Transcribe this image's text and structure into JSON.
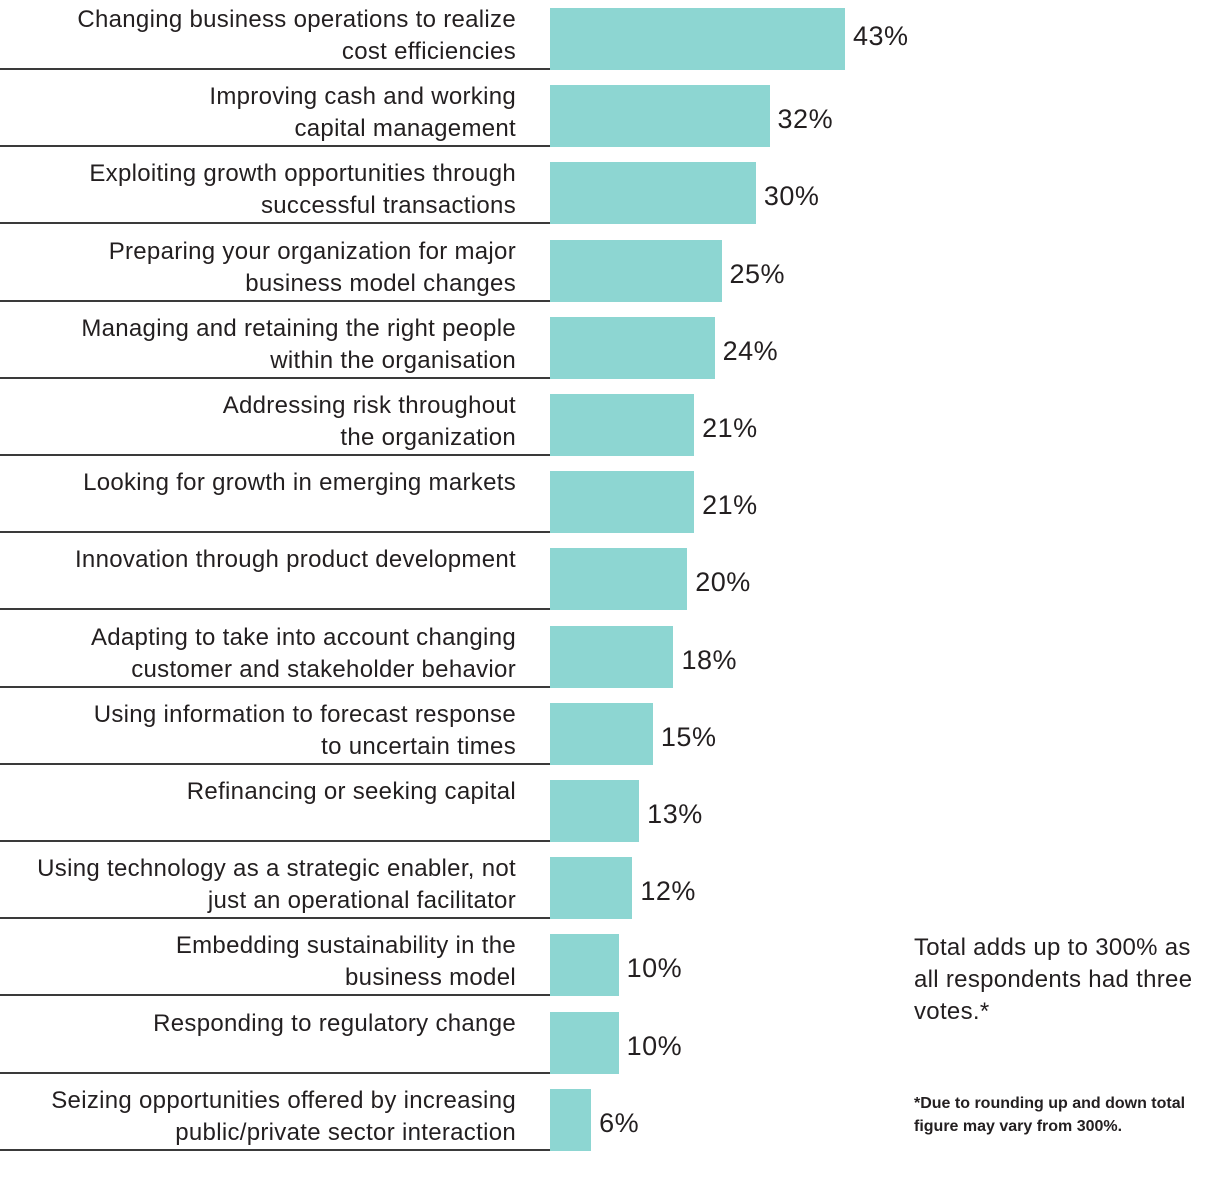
{
  "chart_data": {
    "type": "bar",
    "orientation": "horizontal",
    "title": "",
    "xlabel": "",
    "ylabel": "",
    "value_suffix": "%",
    "xlim": [
      0,
      43
    ],
    "grid": false,
    "legend": "none",
    "bar_color": "#8dd6d2",
    "categories": [
      "Changing business operations to realize\ncost efficiencies",
      "Improving cash and working\ncapital management",
      "Exploiting growth opportunities through\nsuccessful transactions",
      "Preparing your organization for major\nbusiness model changes",
      "Managing and retaining the right people\nwithin the organisation",
      "Addressing risk throughout\nthe organization",
      "Looking for growth in emerging markets",
      "Innovation through product development",
      "Adapting to take into account changing\ncustomer and stakeholder behavior",
      "Using information to forecast response\nto uncertain times",
      "Refinancing or seeking capital",
      "Using technology as a strategic enabler, not\njust an operational facilitator",
      "Embedding sustainability in the\nbusiness model",
      "Responding to regulatory change",
      "Seizing opportunities offered by increasing\npublic/private sector interaction"
    ],
    "values": [
      43,
      32,
      30,
      25,
      24,
      21,
      21,
      20,
      18,
      15,
      13,
      12,
      10,
      10,
      6
    ],
    "value_labels": [
      "43%",
      "32%",
      "30%",
      "25%",
      "24%",
      "21%",
      "21%",
      "20%",
      "18%",
      "15%",
      "13%",
      "12%",
      "10%",
      "10%",
      "6%"
    ]
  },
  "note": "Total adds up to 300% as all respondents had three votes.*",
  "footnote": "*Due to rounding up and down total figure may vary from 300%."
}
